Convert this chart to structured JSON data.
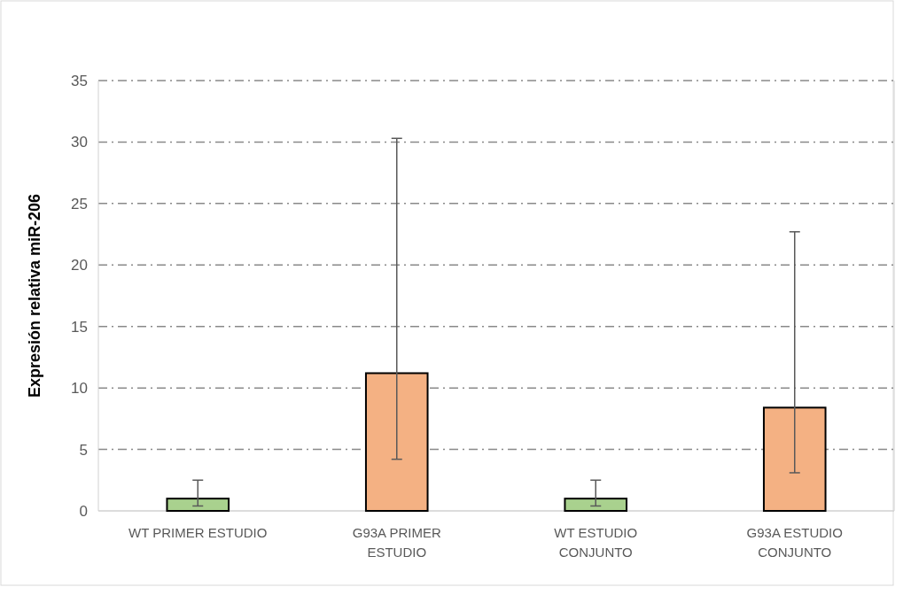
{
  "chart_data": {
    "type": "bar",
    "ylabel": "Expresión relativa miR-206",
    "categories": [
      "WT PRIMER ESTUDIO",
      "G93A PRIMER ESTUDIO",
      "WT ESTUDIO CONJUNTO",
      "G93A ESTUDIO CONJUNTO"
    ],
    "values": [
      1.0,
      11.2,
      1.0,
      8.4
    ],
    "colors": [
      "#a9d18e",
      "#f4b183",
      "#a9d18e",
      "#f4b183"
    ],
    "errors": [
      [
        0.4,
        2.5
      ],
      [
        4.2,
        30.3
      ],
      [
        0.4,
        2.5
      ],
      [
        3.1,
        22.7
      ]
    ],
    "ylim": [
      0,
      35
    ],
    "yticks": [
      0,
      5,
      10,
      15,
      20,
      25,
      30,
      35
    ],
    "grid": "y"
  }
}
